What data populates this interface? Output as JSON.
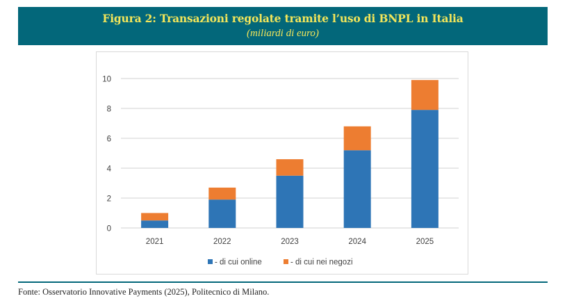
{
  "header": {
    "title": "Figura 2: Transazioni regolate tramite l’uso di BNPL in Italia",
    "subtitle": "(miliardi di euro)"
  },
  "footer": {
    "source": "Fonte: Osservatorio Innovative Payments (2025), Politecnico di Milano."
  },
  "colors": {
    "header_bg": "#03677A",
    "header_text": "#F2E55A",
    "online": "#2E75B6",
    "stores": "#ED7D31",
    "gridline": "#D9D9D9",
    "axis_text": "#404040"
  },
  "chart_data": {
    "type": "bar",
    "stacked": true,
    "title": "Figura 2: Transazioni regolate tramite l’uso di BNPL in Italia",
    "subtitle": "(miliardi di euro)",
    "xlabel": "",
    "ylabel": "",
    "categories": [
      "2021",
      "2022",
      "2023",
      "2024",
      "2025"
    ],
    "series": [
      {
        "name": "- di cui online",
        "color": "#2E75B6",
        "values": [
          0.5,
          1.9,
          3.5,
          5.2,
          7.9
        ]
      },
      {
        "name": "- di cui nei negozi",
        "color": "#ED7D31",
        "values": [
          0.5,
          0.8,
          1.1,
          1.6,
          2.0
        ]
      }
    ],
    "totals": [
      1.0,
      2.7,
      4.6,
      6.8,
      9.9
    ],
    "ylim": [
      0,
      10
    ],
    "yticks": [
      "0",
      "2",
      "4",
      "6",
      "8",
      "10"
    ],
    "ytick_values": [
      0,
      2,
      4,
      6,
      8,
      10
    ],
    "grid": true,
    "legend_position": "bottom"
  }
}
